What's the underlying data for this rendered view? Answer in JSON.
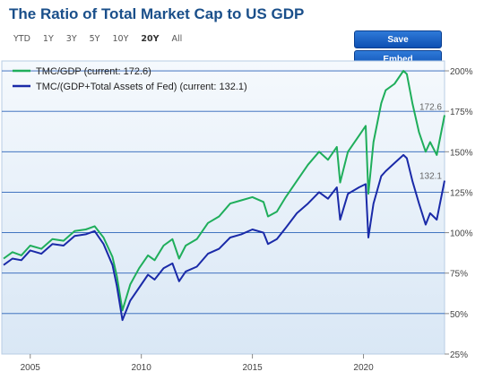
{
  "header": {
    "title": "The Ratio of Total Market Cap to US GDP",
    "ranges": [
      "YTD",
      "1Y",
      "3Y",
      "5Y",
      "10Y",
      "20Y",
      "All"
    ],
    "active_range": "20Y",
    "save_label": "Save",
    "embed_label": "Embed"
  },
  "colors": {
    "green": "#1fae5b",
    "blue": "#1a2aa8",
    "grid": "#2a62b8",
    "bg_top": "#f5f9fd",
    "bg_bottom": "#d9e7f5"
  },
  "chart_data": {
    "type": "line",
    "title": "The Ratio of Total Market Cap to US GDP",
    "xlabel": "",
    "ylabel": "",
    "xlim": [
      2003.8,
      2023.65
    ],
    "ylim": [
      25,
      205
    ],
    "x_ticks": [
      2005,
      2010,
      2015,
      2020
    ],
    "y_ticks": [
      25,
      50,
      75,
      100,
      125,
      150,
      175,
      200
    ],
    "y_tick_labels": [
      "25%",
      "50%",
      "75%",
      "100%",
      "125%",
      "150%",
      "175%",
      "200%"
    ],
    "legend_position": "top-left",
    "end_labels": [
      "172.6",
      "132.1"
    ],
    "series": [
      {
        "name": "TMC/GDP (current: 172.6)",
        "color": "#1fae5b",
        "x": [
          2003.8,
          2004.2,
          2004.6,
          2005.0,
          2005.5,
          2006.0,
          2006.5,
          2007.0,
          2007.5,
          2007.9,
          2008.3,
          2008.7,
          2008.9,
          2009.15,
          2009.5,
          2009.9,
          2010.3,
          2010.6,
          2011.0,
          2011.4,
          2011.7,
          2012.0,
          2012.5,
          2013.0,
          2013.5,
          2014.0,
          2014.5,
          2015.0,
          2015.5,
          2015.7,
          2016.1,
          2016.5,
          2017.0,
          2017.5,
          2018.0,
          2018.4,
          2018.8,
          2018.95,
          2019.3,
          2019.8,
          2020.1,
          2020.22,
          2020.45,
          2020.8,
          2021.0,
          2021.4,
          2021.8,
          2021.95,
          2022.2,
          2022.5,
          2022.8,
          2023.0,
          2023.3,
          2023.65
        ],
        "values": [
          84,
          88,
          86,
          92,
          90,
          96,
          95,
          101,
          102,
          104,
          97,
          85,
          73,
          52,
          68,
          78,
          86,
          83,
          92,
          96,
          84,
          92,
          96,
          106,
          110,
          118,
          120,
          122,
          119,
          110,
          113,
          122,
          132,
          142,
          150,
          145,
          153,
          131,
          150,
          160,
          166,
          124,
          156,
          180,
          188,
          192,
          200,
          198,
          180,
          162,
          150,
          156,
          148,
          172.6
        ]
      },
      {
        "name": "TMC/(GDP+Total Assets of Fed) (current: 132.1)",
        "color": "#1a2aa8",
        "x": [
          2003.8,
          2004.2,
          2004.6,
          2005.0,
          2005.5,
          2006.0,
          2006.5,
          2007.0,
          2007.5,
          2007.9,
          2008.3,
          2008.7,
          2008.9,
          2009.15,
          2009.5,
          2009.9,
          2010.3,
          2010.6,
          2011.0,
          2011.4,
          2011.7,
          2012.0,
          2012.5,
          2013.0,
          2013.5,
          2014.0,
          2014.5,
          2015.0,
          2015.5,
          2015.7,
          2016.1,
          2016.5,
          2017.0,
          2017.5,
          2018.0,
          2018.4,
          2018.8,
          2018.95,
          2019.3,
          2019.8,
          2020.1,
          2020.22,
          2020.45,
          2020.8,
          2021.0,
          2021.4,
          2021.8,
          2021.95,
          2022.2,
          2022.5,
          2022.8,
          2023.0,
          2023.3,
          2023.65
        ],
        "values": [
          80,
          84,
          83,
          89,
          87,
          93,
          92,
          98,
          99,
          101,
          93,
          80,
          67,
          46,
          58,
          66,
          74,
          71,
          78,
          81,
          70,
          76,
          79,
          87,
          90,
          97,
          99,
          102,
          100,
          93,
          96,
          103,
          112,
          118,
          125,
          121,
          128,
          108,
          124,
          128,
          130,
          97,
          118,
          135,
          138,
          143,
          148,
          146,
          132,
          118,
          105,
          112,
          108,
          132.1
        ]
      }
    ]
  }
}
